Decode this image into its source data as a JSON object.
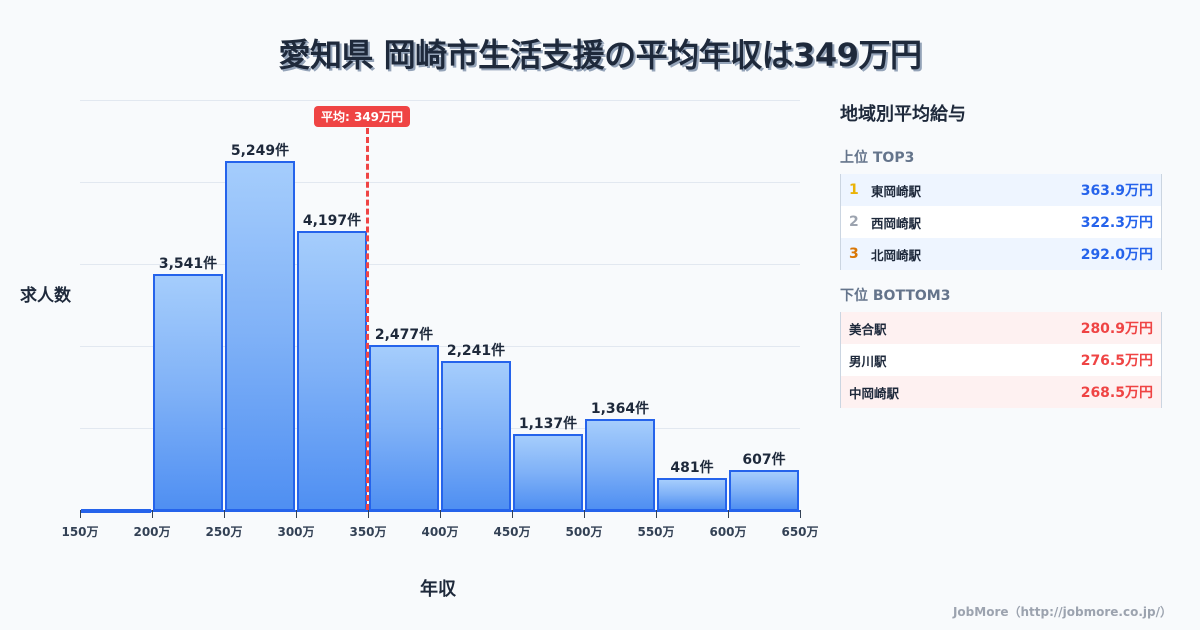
{
  "title": "愛知県 岡崎市生活支援の平均年収は349万円",
  "chart_data": {
    "type": "bar",
    "title": "愛知県 岡崎市生活支援の平均年収は349万円",
    "xlabel": "年収",
    "ylabel": "求人数",
    "bin_edges": [
      150,
      200,
      250,
      300,
      350,
      400,
      450,
      500,
      550,
      600,
      650
    ],
    "tick_labels": [
      "150万",
      "200万",
      "250万",
      "300万",
      "350万",
      "400万",
      "450万",
      "500万",
      "550万",
      "600万",
      "650万"
    ],
    "categories": [
      "150-200万",
      "200-250万",
      "250-300万",
      "300-350万",
      "350-400万",
      "400-450万",
      "450-500万",
      "500-550万",
      "550-600万",
      "600-650万"
    ],
    "values": [
      0,
      3541,
      5249,
      4197,
      2477,
      2241,
      1137,
      1364,
      481,
      607
    ],
    "value_labels": [
      "",
      "3,541件",
      "5,249件",
      "4,197件",
      "2,477件",
      "2,241件",
      "1,137件",
      "1,364件",
      "481件",
      "607件"
    ],
    "ylim": [
      0,
      6160
    ],
    "grid": true,
    "mean_line": {
      "value": 349,
      "label": "平均: 349万円",
      "color": "#ef4444"
    },
    "bar_color": "#2563eb"
  },
  "side": {
    "title": "地域別平均給与",
    "top_title": "上位 TOP3",
    "top": [
      {
        "rank": "1",
        "name": "東岡崎駅",
        "value": "363.9万円",
        "rank_color": "#eab308"
      },
      {
        "rank": "2",
        "name": "西岡崎駅",
        "value": "322.3万円",
        "rank_color": "#9ca3af"
      },
      {
        "rank": "3",
        "name": "北岡崎駅",
        "value": "292.0万円",
        "rank_color": "#d97706"
      }
    ],
    "bottom_title": "下位 BOTTOM3",
    "bottom": [
      {
        "name": "美合駅",
        "value": "280.9万円"
      },
      {
        "name": "男川駅",
        "value": "276.5万円"
      },
      {
        "name": "中岡崎駅",
        "value": "268.5万円"
      }
    ]
  },
  "footer": "JobMore（http://jobmore.co.jp/）"
}
